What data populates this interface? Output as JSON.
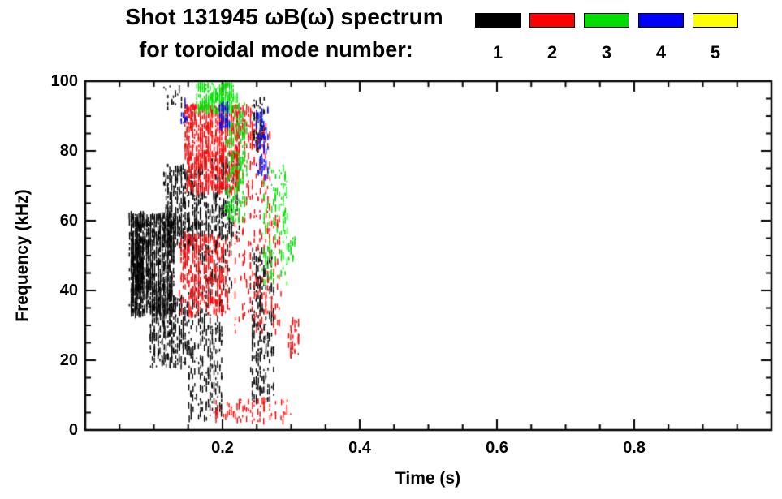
{
  "title": {
    "line1": "Shot 131945 ωB(ω) spectrum",
    "line2": "for toroidal mode number:"
  },
  "legend": {
    "items": [
      {
        "label": "1",
        "color": "#000000"
      },
      {
        "label": "2",
        "color": "#ff0000"
      },
      {
        "label": "3",
        "color": "#00dd00"
      },
      {
        "label": "4",
        "color": "#0000ff"
      },
      {
        "label": "5",
        "color": "#ffff00"
      }
    ]
  },
  "chart_data": {
    "type": "scatter",
    "title": "Shot 131945 ωB(ω) spectrum for toroidal mode number: 1 2 3 4 5",
    "xlabel": "Time (s)",
    "ylabel": "Frequency (kHz)",
    "xlim": [
      0.0,
      1.0
    ],
    "ylim": [
      0,
      100
    ],
    "grid": false,
    "legend_position": "top-right",
    "xticks": {
      "major": [
        0.2,
        0.4,
        0.6,
        0.8
      ],
      "labels": [
        "0.2",
        "0.4",
        "0.6",
        "0.8"
      ],
      "minor_step": 0.05
    },
    "yticks": {
      "major": [
        0,
        20,
        40,
        60,
        80,
        100
      ],
      "labels": [
        "0",
        "20",
        "40",
        "60",
        "80",
        "100"
      ],
      "minor_step": 5
    },
    "series": [
      {
        "name": "1",
        "mode_number": 1,
        "color": "#000000",
        "clusters": [
          {
            "t": [
              0.065,
              0.13
            ],
            "f": [
              33,
              62
            ],
            "n": 1100
          },
          {
            "t": [
              0.068,
              0.085
            ],
            "f": [
              40,
              55
            ],
            "n": 200
          },
          {
            "t": [
              0.095,
              0.15
            ],
            "f": [
              18,
              38
            ],
            "n": 280
          },
          {
            "t": [
              0.115,
              0.17
            ],
            "f": [
              52,
              76
            ],
            "n": 380
          },
          {
            "t": [
              0.15,
              0.2
            ],
            "f": [
              3,
              40
            ],
            "n": 260
          },
          {
            "t": [
              0.16,
              0.215
            ],
            "f": [
              40,
              68
            ],
            "n": 220
          },
          {
            "t": [
              0.185,
              0.225
            ],
            "f": [
              55,
              80
            ],
            "n": 160
          },
          {
            "t": [
              0.242,
              0.275
            ],
            "f": [
              8,
              52
            ],
            "n": 260
          },
          {
            "t": [
              0.245,
              0.262
            ],
            "f": [
              80,
              95
            ],
            "n": 70
          },
          {
            "t": [
              0.115,
              0.14
            ],
            "f": [
              92,
              99
            ],
            "n": 18
          }
        ]
      },
      {
        "name": "2",
        "mode_number": 2,
        "color": "#ff0000",
        "clusters": [
          {
            "t": [
              0.145,
              0.225
            ],
            "f": [
              68,
              93
            ],
            "n": 800
          },
          {
            "t": [
              0.22,
              0.245
            ],
            "f": [
              80,
              93
            ],
            "n": 60
          },
          {
            "t": [
              0.138,
              0.21
            ],
            "f": [
              33,
              56
            ],
            "n": 360
          },
          {
            "t": [
              0.215,
              0.285
            ],
            "f": [
              28,
              62
            ],
            "n": 160
          },
          {
            "t": [
              0.23,
              0.27
            ],
            "f": [
              62,
              88
            ],
            "n": 90
          },
          {
            "t": [
              0.185,
              0.3
            ],
            "f": [
              2,
              9
            ],
            "n": 80
          },
          {
            "t": [
              0.298,
              0.312
            ],
            "f": [
              21,
              32
            ],
            "n": 35
          }
        ]
      },
      {
        "name": "3",
        "mode_number": 3,
        "color": "#00dd00",
        "clusters": [
          {
            "t": [
              0.162,
              0.215
            ],
            "f": [
              91,
              100
            ],
            "n": 220
          },
          {
            "t": [
              0.205,
              0.235
            ],
            "f": [
              60,
              96
            ],
            "n": 190
          },
          {
            "t": [
              0.258,
              0.295
            ],
            "f": [
              42,
              76
            ],
            "n": 130
          },
          {
            "t": [
              0.295,
              0.305
            ],
            "f": [
              48,
              55
            ],
            "n": 20
          }
        ]
      },
      {
        "name": "4",
        "mode_number": 4,
        "color": "#0000ff",
        "clusters": [
          {
            "t": [
              0.195,
              0.21
            ],
            "f": [
              85,
              94
            ],
            "n": 45
          },
          {
            "t": [
              0.248,
              0.266
            ],
            "f": [
              72,
              92
            ],
            "n": 70
          },
          {
            "t": [
              0.138,
              0.148
            ],
            "f": [
              88,
              95
            ],
            "n": 12
          }
        ]
      },
      {
        "name": "5",
        "mode_number": 5,
        "color": "#ffff00",
        "clusters": []
      }
    ]
  }
}
